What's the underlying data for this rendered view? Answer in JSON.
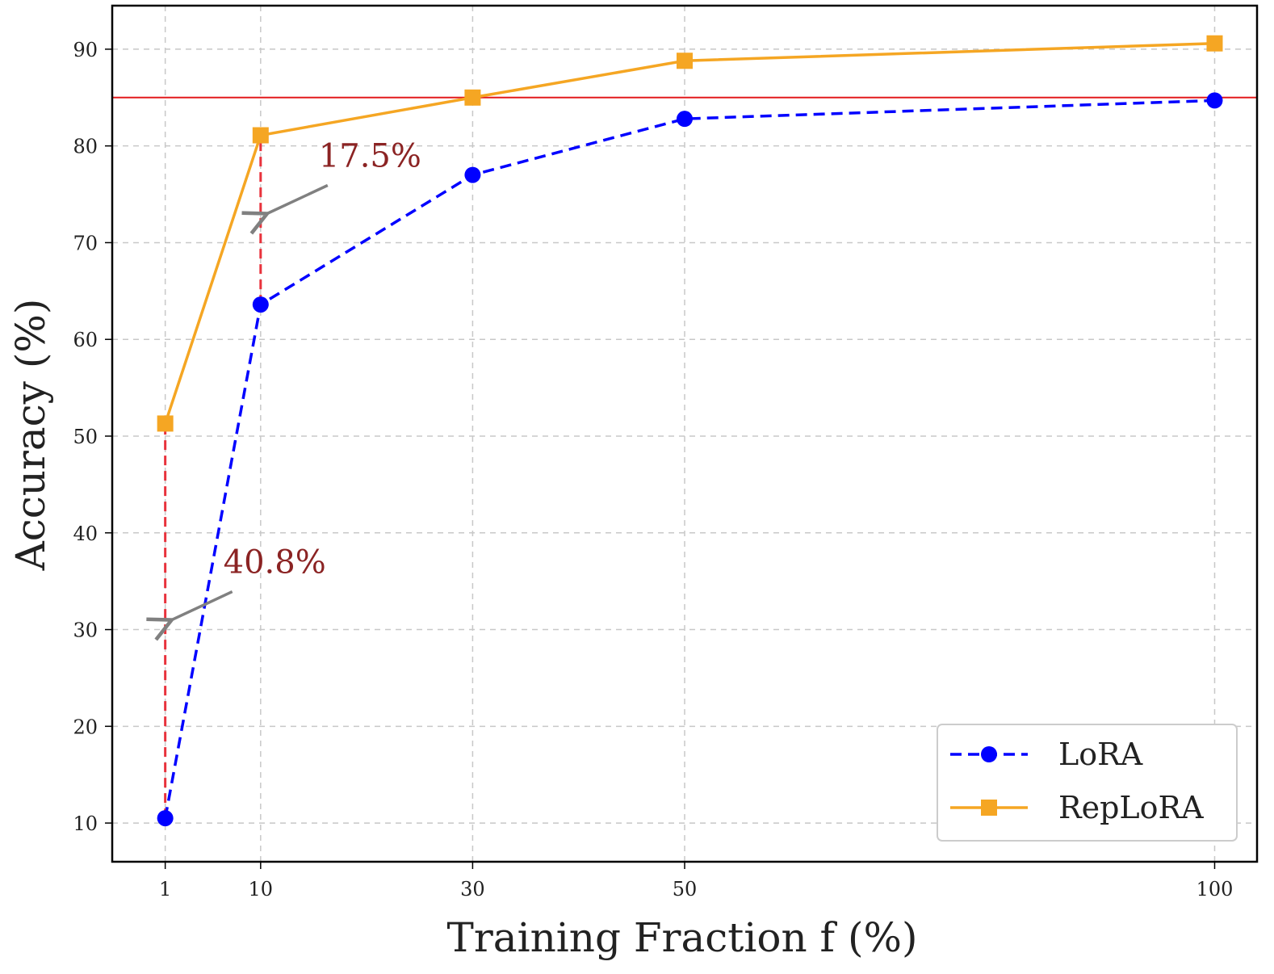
{
  "chart_data": {
    "type": "line",
    "title": "",
    "xlabel": "Training Fraction f (%)",
    "ylabel": "Accuracy (%)",
    "x": [
      1,
      10,
      30,
      50,
      100
    ],
    "x_tick_labels": [
      "1",
      "10",
      "30",
      "50",
      "100"
    ],
    "y_ticks": [
      10,
      20,
      30,
      40,
      50,
      60,
      70,
      80,
      90
    ],
    "y_tick_labels": [
      "10",
      "20",
      "30",
      "40",
      "50",
      60,
      "70",
      "80",
      "90"
    ],
    "xlim": [
      -4,
      104
    ],
    "ylim": [
      6,
      94.5
    ],
    "grid": true,
    "legend_position": "bottom-right",
    "series": [
      {
        "name": "LoRA",
        "values": [
          10.5,
          63.6,
          77.0,
          82.8,
          84.7
        ],
        "color": "#0000ff",
        "linestyle": "dashed",
        "marker": "circle"
      },
      {
        "name": "RepLoRA",
        "values": [
          51.3,
          81.1,
          85.0,
          88.8,
          90.6
        ],
        "color": "#f5a623",
        "linestyle": "solid",
        "marker": "square"
      }
    ],
    "reference_line": {
      "y": 85.0,
      "color": "#e31a1c"
    },
    "annotations": [
      {
        "text": "40.8%",
        "x": 1,
        "y_from": 10.5,
        "y_to": 51.3,
        "arrow_to_y": 31
      },
      {
        "text": "17.5%",
        "x": 10,
        "y_from": 63.6,
        "y_to": 81.1,
        "arrow_to_y": 73
      }
    ],
    "colors": {
      "gap_line": "#e8323c",
      "arrow": "#808080",
      "annotation_text": "#8b2323"
    }
  }
}
